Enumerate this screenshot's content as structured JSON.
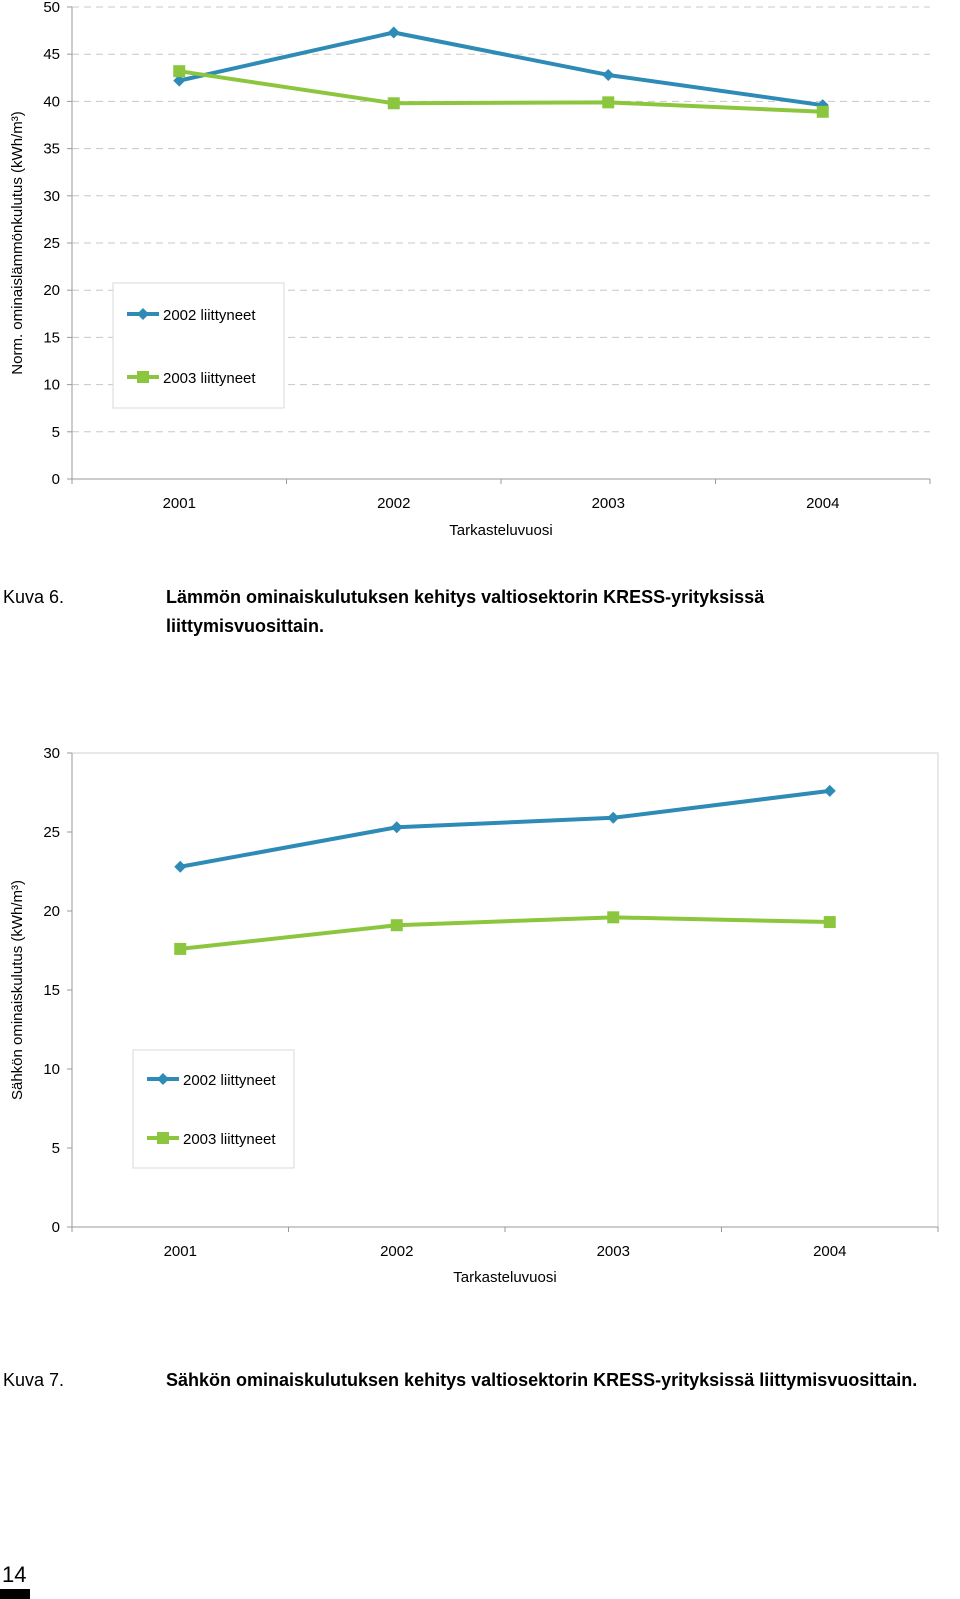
{
  "page_number": "14",
  "chart_data": [
    {
      "type": "line",
      "title": "",
      "xlabel": "Tarkasteluvuosi",
      "ylabel": "Norm. ominaislämmönkulutus (kWh/m³)",
      "categories": [
        "2001",
        "2002",
        "2003",
        "2004"
      ],
      "ylim": [
        0,
        50
      ],
      "yticks": [
        "0",
        "5",
        "10",
        "15",
        "20",
        "25",
        "30",
        "35",
        "40",
        "45",
        "50"
      ],
      "grid": true,
      "legend_position": "bottom-left",
      "series": [
        {
          "name": "2002 liittyneet",
          "color": "#2e8bb5",
          "marker": "diamond",
          "values": [
            42.2,
            47.3,
            42.8,
            39.6
          ]
        },
        {
          "name": "2003 liittyneet",
          "color": "#8cc63f",
          "marker": "square",
          "values": [
            43.2,
            39.8,
            39.9,
            38.9
          ]
        }
      ],
      "caption_label": "Kuva 6.",
      "caption_text": "Lämmön ominaiskulutuksen kehitys valtiosektorin KRESS-yrityksissä liittymisvuosittain."
    },
    {
      "type": "line",
      "title": "",
      "xlabel": "Tarkasteluvuosi",
      "ylabel": "Sähkön ominaiskulutus (kWh/m³)",
      "categories": [
        "2001",
        "2002",
        "2003",
        "2004"
      ],
      "ylim": [
        0,
        30
      ],
      "yticks": [
        "0",
        "5",
        "10",
        "15",
        "20",
        "25",
        "30"
      ],
      "grid": false,
      "legend_position": "bottom-left",
      "series": [
        {
          "name": "2002 liittyneet",
          "color": "#2e8bb5",
          "marker": "diamond",
          "values": [
            22.8,
            25.3,
            25.9,
            27.6
          ]
        },
        {
          "name": "2003 liittyneet",
          "color": "#8cc63f",
          "marker": "square",
          "values": [
            17.6,
            19.1,
            19.6,
            19.3
          ]
        }
      ],
      "caption_label": "Kuva 7.",
      "caption_text": "Sähkön ominaiskulutuksen kehitys valtiosektorin KRESS-yrityksissä liittymisvuosittain."
    }
  ]
}
